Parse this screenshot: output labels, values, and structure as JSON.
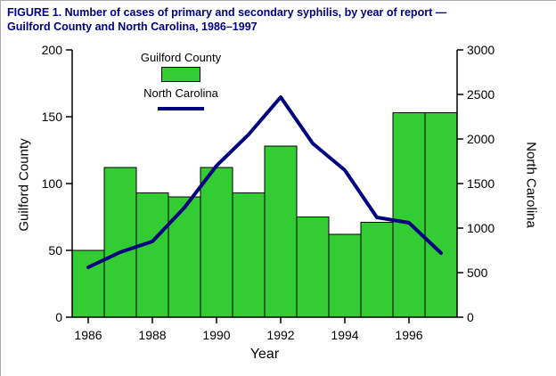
{
  "figure": {
    "title_lines": [
      "FIGURE 1. Number of cases of primary and secondary syphilis, by year of report —",
      "Guilford County and North Carolina, 1986–1997"
    ],
    "title_color": "#000080"
  },
  "chart_data": {
    "type": "bar",
    "subtype": "bar-and-line-dual-axis",
    "categories": [
      1986,
      1987,
      1988,
      1989,
      1990,
      1991,
      1992,
      1993,
      1994,
      1995,
      1996,
      1997
    ],
    "series": [
      {
        "name": "Guilford County",
        "type": "bar",
        "axis": "left",
        "color": "#33CC33",
        "values": [
          50,
          112,
          93,
          90,
          112,
          93,
          128,
          75,
          62,
          71,
          153,
          153
        ]
      },
      {
        "name": "North Carolina",
        "type": "line",
        "axis": "right",
        "color": "#000080",
        "values": [
          560,
          730,
          850,
          1230,
          1700,
          2050,
          2470,
          1950,
          1650,
          1120,
          1060,
          720
        ]
      }
    ],
    "left_axis": {
      "label": "Guilford County",
      "min": 0,
      "max": 200,
      "ticks": [
        0,
        50,
        100,
        150,
        200
      ]
    },
    "right_axis": {
      "label": "North Carolina",
      "min": 0,
      "max": 3000,
      "ticks": [
        0,
        500,
        1000,
        1500,
        2000,
        2500,
        3000
      ]
    },
    "x_axis": {
      "label": "Year",
      "tick_labels": [
        1986,
        1988,
        1990,
        1992,
        1994,
        1996
      ]
    },
    "legend": {
      "position": "top-inside",
      "entries": [
        "Guilford County",
        "North Carolina"
      ]
    },
    "grid": "off"
  }
}
